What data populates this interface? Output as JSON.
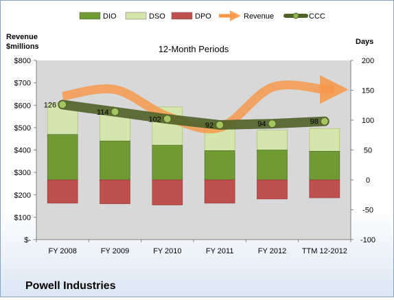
{
  "chart_data": {
    "type": "bar",
    "title": "12-Month Periods",
    "company": "Powell Industries",
    "left_axis_label": [
      "Revenue",
      "$millions"
    ],
    "right_axis_label": "Days",
    "categories": [
      "FY 2008",
      "FY 2009",
      "FY 2010",
      "FY 2011",
      "FY 2012",
      "TTM 12-2012"
    ],
    "left_ticks": [
      "$-",
      "$100",
      "$200",
      "$300",
      "$400",
      "$500",
      "$600",
      "$700",
      "$800"
    ],
    "left_ylim": [
      0,
      800
    ],
    "right_ticks": [
      "-100",
      "-50",
      "0",
      "50",
      "100",
      "150",
      "200"
    ],
    "right_ylim": [
      -100,
      200
    ],
    "legend": [
      {
        "key": "DIO",
        "label": "DIO",
        "color": "#6f9a34"
      },
      {
        "key": "DSO",
        "label": "DSO",
        "color": "#d5e6ad"
      },
      {
        "key": "DPO",
        "label": "DPO",
        "color": "#c0504d"
      },
      {
        "key": "Revenue",
        "label": "Revenue",
        "color": "#f79646"
      },
      {
        "key": "CCC",
        "label": "CCC",
        "color": "#4f6228"
      }
    ],
    "series": [
      {
        "name": "DIO",
        "axis": "days",
        "values": [
          76,
          65,
          58,
          49,
          50,
          48
        ]
      },
      {
        "name": "DSO",
        "axis": "days",
        "values": [
          52,
          52,
          64,
          45,
          33,
          38
        ]
      },
      {
        "name": "DPO",
        "axis": "days",
        "values": [
          -39,
          -40,
          -42,
          -39,
          -32,
          -30
        ]
      },
      {
        "name": "Revenue",
        "axis": "revenue",
        "values": [
          640,
          670,
          550,
          500,
          680,
          670
        ]
      },
      {
        "name": "CCC",
        "axis": "days",
        "values": [
          126,
          114,
          102,
          92,
          94,
          98
        ]
      }
    ],
    "ccc_labels": [
      "126",
      "114",
      "102",
      "92",
      "94",
      "98"
    ],
    "grid": false,
    "legend_position": "top"
  }
}
